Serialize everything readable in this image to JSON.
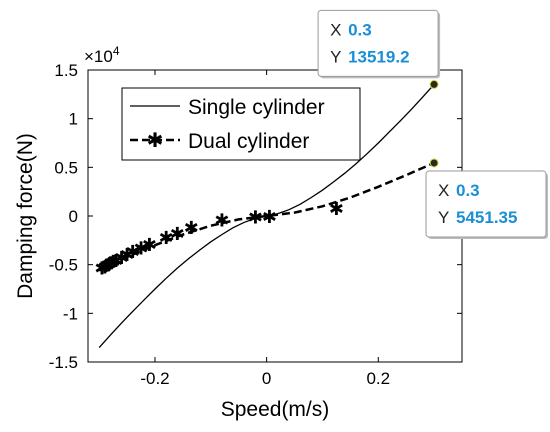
{
  "chart_data": {
    "type": "line",
    "title": "",
    "xlabel": "Speed(m/s)",
    "ylabel": "Damping force(N)",
    "y_exponent_label": "×10",
    "y_exponent": "4",
    "xlim": [
      -0.32,
      0.35
    ],
    "ylim": [
      -15000,
      15000
    ],
    "xticks": [
      -0.2,
      0,
      0.2
    ],
    "xtick_labels": [
      "-0.2",
      "0",
      "0.2"
    ],
    "yticks": [
      -15000,
      -10000,
      -5000,
      0,
      5000,
      10000,
      15000
    ],
    "ytick_labels": [
      "-1.5",
      "-1",
      "-0.5",
      "0",
      "0.5",
      "1",
      "1.5"
    ],
    "legend_position": "upper-left",
    "grid": false,
    "series": [
      {
        "name": "Single cylinder",
        "style": "solid",
        "color": "#000000",
        "x": [
          -0.3,
          -0.28,
          -0.26,
          -0.24,
          -0.22,
          -0.2,
          -0.18,
          -0.16,
          -0.14,
          -0.12,
          -0.1,
          -0.08,
          -0.06,
          -0.04,
          -0.02,
          0,
          0.02,
          0.04,
          0.06,
          0.08,
          0.1,
          0.12,
          0.14,
          0.16,
          0.18,
          0.2,
          0.22,
          0.24,
          0.26,
          0.28,
          0.3
        ],
        "y": [
          -13519.2,
          -12250,
          -11000,
          -9800,
          -8650,
          -7500,
          -6400,
          -5350,
          -4400,
          -3500,
          -2650,
          -1900,
          -1200,
          -650,
          -250,
          0,
          250,
          650,
          1200,
          1900,
          2650,
          3500,
          4400,
          5350,
          6400,
          7500,
          8650,
          9800,
          11000,
          12250,
          13519.2
        ]
      },
      {
        "name": "Dual cylinder",
        "style": "dashed-star",
        "color": "#000000",
        "x": [
          -0.3,
          -0.25,
          -0.2,
          -0.15,
          -0.1,
          -0.05,
          0,
          0.05,
          0.1,
          0.15,
          0.2,
          0.25,
          0.3
        ],
        "y": [
          -5451.35,
          -4200,
          -3000,
          -1900,
          -1000,
          -350,
          0,
          350,
          1000,
          1900,
          3000,
          4200,
          5451.35
        ],
        "marker_x": [
          -0.295,
          -0.29,
          -0.285,
          -0.28,
          -0.275,
          -0.27,
          -0.26,
          -0.25,
          -0.24,
          -0.225,
          -0.21,
          -0.18,
          -0.16,
          -0.135,
          -0.08,
          -0.02,
          0.005,
          0.125
        ],
        "marker_y": [
          -5300,
          -5200,
          -5000,
          -4800,
          -4600,
          -4500,
          -4200,
          -3900,
          -3600,
          -3250,
          -2900,
          -2150,
          -1750,
          -1150,
          -380,
          -60,
          0,
          800
        ]
      }
    ],
    "datatips": [
      {
        "x_key": "X",
        "x_value": "0.3",
        "y_key": "Y",
        "y_value": "13519.2",
        "point_x": 0.3,
        "point_y": 13519.2,
        "placement": "above-left"
      },
      {
        "x_key": "X",
        "x_value": "0.3",
        "y_key": "Y",
        "y_value": "5451.35",
        "point_x": 0.3,
        "point_y": 5451.35,
        "placement": "below-right"
      }
    ]
  }
}
